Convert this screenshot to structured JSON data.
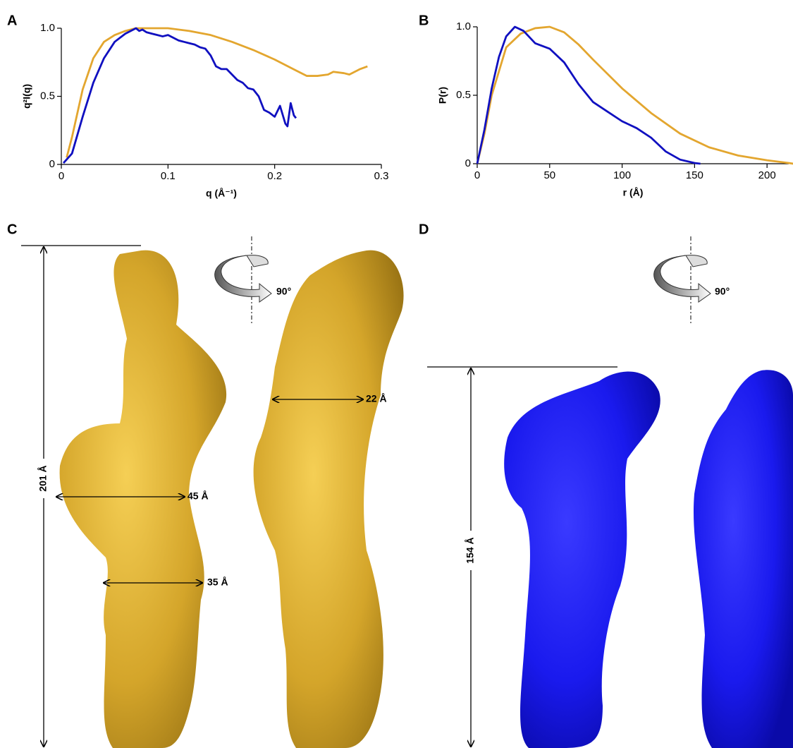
{
  "chart_data": [
    {
      "type": "line",
      "xlabel": "q (Å⁻¹)",
      "ylabel": "q²I(q)",
      "xlim": [
        0,
        0.3
      ],
      "xticks": [
        0,
        0.1,
        0.2,
        0.3
      ],
      "ylim": [
        0,
        1
      ],
      "yticks": [
        0,
        0.5,
        {
          "value": 1,
          "label": "1.0"
        }
      ],
      "series": [
        {
          "color": "#e3a62f",
          "x": [
            0.005,
            0.01,
            0.02,
            0.03,
            0.04,
            0.05,
            0.06,
            0.07,
            0.08,
            0.1,
            0.12,
            0.14,
            0.16,
            0.18,
            0.2,
            0.21,
            0.22,
            0.23,
            0.24,
            0.25,
            0.255,
            0.265,
            0.27,
            0.28,
            0.287
          ],
          "values": [
            0.05,
            0.2,
            0.55,
            0.78,
            0.9,
            0.95,
            0.98,
            1.0,
            1.0,
            1.0,
            0.98,
            0.95,
            0.9,
            0.84,
            0.77,
            0.73,
            0.69,
            0.65,
            0.65,
            0.66,
            0.68,
            0.67,
            0.66,
            0.7,
            0.72
          ]
        },
        {
          "color": "#1010c0",
          "x": [
            0.002,
            0.01,
            0.02,
            0.03,
            0.04,
            0.05,
            0.055,
            0.06,
            0.065,
            0.07,
            0.073,
            0.076,
            0.08,
            0.085,
            0.09,
            0.095,
            0.1,
            0.105,
            0.11,
            0.115,
            0.12,
            0.125,
            0.13,
            0.135,
            0.14,
            0.145,
            0.15,
            0.155,
            0.16,
            0.165,
            0.17,
            0.175,
            0.18,
            0.185,
            0.19,
            0.195,
            0.2,
            0.205,
            0.21,
            0.212,
            0.215,
            0.218,
            0.22
          ],
          "values": [
            0.01,
            0.08,
            0.35,
            0.6,
            0.78,
            0.9,
            0.93,
            0.96,
            0.98,
            1.0,
            0.98,
            0.99,
            0.97,
            0.96,
            0.95,
            0.94,
            0.95,
            0.93,
            0.91,
            0.9,
            0.89,
            0.88,
            0.86,
            0.85,
            0.8,
            0.72,
            0.7,
            0.7,
            0.66,
            0.62,
            0.6,
            0.56,
            0.55,
            0.5,
            0.4,
            0.38,
            0.35,
            0.43,
            0.3,
            0.28,
            0.45,
            0.36,
            0.34
          ]
        }
      ]
    },
    {
      "type": "line",
      "xlabel": "r (Å)",
      "ylabel": "P(r)",
      "xlim": [
        0,
        215
      ],
      "xticks": [
        0,
        50,
        100,
        150,
        200
      ],
      "ylim": [
        0,
        1
      ],
      "yticks": [
        0,
        0.5,
        {
          "value": 1,
          "label": "1.0"
        }
      ],
      "series": [
        {
          "color": "#e3a62f",
          "x": [
            0,
            5,
            10,
            20,
            30,
            40,
            50,
            60,
            70,
            80,
            100,
            120,
            140,
            160,
            180,
            200,
            215,
            218
          ],
          "values": [
            0,
            0.22,
            0.5,
            0.85,
            0.95,
            0.99,
            1.0,
            0.96,
            0.87,
            0.76,
            0.55,
            0.37,
            0.22,
            0.12,
            0.06,
            0.025,
            0.005,
            0
          ]
        },
        {
          "color": "#1010c0",
          "x": [
            0,
            5,
            10,
            15,
            20,
            26,
            32,
            40,
            50,
            60,
            70,
            80,
            90,
            100,
            110,
            120,
            130,
            140,
            150,
            154
          ],
          "values": [
            0,
            0.25,
            0.55,
            0.78,
            0.93,
            1.0,
            0.97,
            0.88,
            0.84,
            0.74,
            0.58,
            0.45,
            0.38,
            0.31,
            0.26,
            0.19,
            0.09,
            0.03,
            0.005,
            0
          ]
        }
      ]
    }
  ],
  "panels": {
    "a": "A",
    "b": "B",
    "c": {
      "label": "C",
      "length": "201 Å",
      "width_1": "45 Å",
      "width_2": "35 Å",
      "width_3": "22 Å",
      "rotation": "90°"
    },
    "d": {
      "label": "D",
      "length": "154 Å",
      "rotation": "90°"
    }
  }
}
